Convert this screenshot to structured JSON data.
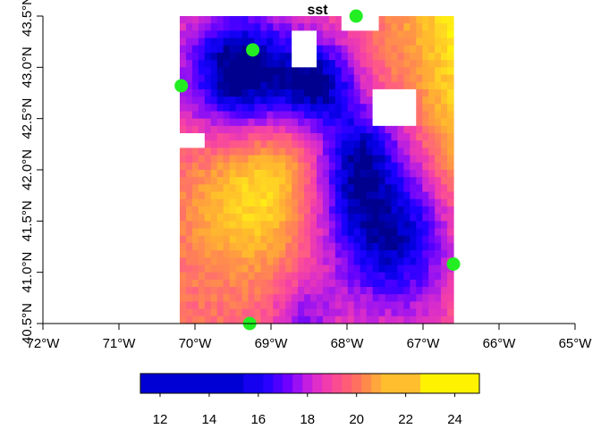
{
  "chart_data": {
    "type": "heatmap",
    "title": "sst",
    "xlabel": "",
    "ylabel": "",
    "xlim": [
      -72,
      -65
    ],
    "ylim": [
      40.5,
      43.5
    ],
    "raster_extent": {
      "lon": [
        -70.2,
        -66.6
      ],
      "lat": [
        40.5,
        43.5
      ]
    },
    "x_ticks": [
      {
        "value": -72,
        "label": "72°W"
      },
      {
        "value": -71,
        "label": "71°W"
      },
      {
        "value": -70,
        "label": "70°W"
      },
      {
        "value": -69,
        "label": "69°W"
      },
      {
        "value": -68,
        "label": "68°W"
      },
      {
        "value": -67,
        "label": "67°W"
      },
      {
        "value": -66,
        "label": "66°W"
      },
      {
        "value": -65,
        "label": "65°W"
      }
    ],
    "y_ticks": [
      {
        "value": 40.5,
        "label": "40.5°N"
      },
      {
        "value": 41.0,
        "label": "41.0°N"
      },
      {
        "value": 41.5,
        "label": "41.5°N"
      },
      {
        "value": 42.0,
        "label": "42.0°N"
      },
      {
        "value": 42.5,
        "label": "42.5°N"
      },
      {
        "value": 43.0,
        "label": "43.0°N"
      },
      {
        "value": 43.5,
        "label": "43.5°N"
      }
    ],
    "legend": {
      "placement": "bottom",
      "range": [
        11.2,
        25.0
      ],
      "ticks": [
        12,
        14,
        16,
        18,
        20,
        22,
        24
      ],
      "breaks": [
        11.2,
        15.4,
        16.2,
        16.6,
        17.0,
        17.4,
        17.8,
        18.2,
        18.6,
        19.0,
        19.4,
        19.8,
        20.2,
        20.6,
        21.0,
        22.6,
        25.0
      ],
      "colors": [
        "#0000d4",
        "#1500f0",
        "#2a00ff",
        "#4d00ff",
        "#7000ff",
        "#9a10f4",
        "#c41ee0",
        "#e02ec8",
        "#f03cac",
        "#fa4c90",
        "#ff5c78",
        "#ff7060",
        "#ff8a4a",
        "#ffa63c",
        "#ffbe2e",
        "#fff200"
      ]
    },
    "colormap": [
      "#00008f",
      "#0000d8",
      "#1c00ff",
      "#5a00ff",
      "#9a14f0",
      "#d42ad0",
      "#f440a8",
      "#ff5c84",
      "#ff7c5c",
      "#ffa23c",
      "#ffc02a",
      "#ffe020",
      "#ffff00"
    ],
    "points": [
      {
        "lon": -70.18,
        "lat": 42.82
      },
      {
        "lon": -69.24,
        "lat": 43.17
      },
      {
        "lon": -67.88,
        "lat": 43.5
      },
      {
        "lon": -66.6,
        "lat": 41.08
      },
      {
        "lon": -69.28,
        "lat": 40.5
      }
    ],
    "point_color": "#22ee22",
    "missing_color": "#ffffff",
    "grid": false
  }
}
